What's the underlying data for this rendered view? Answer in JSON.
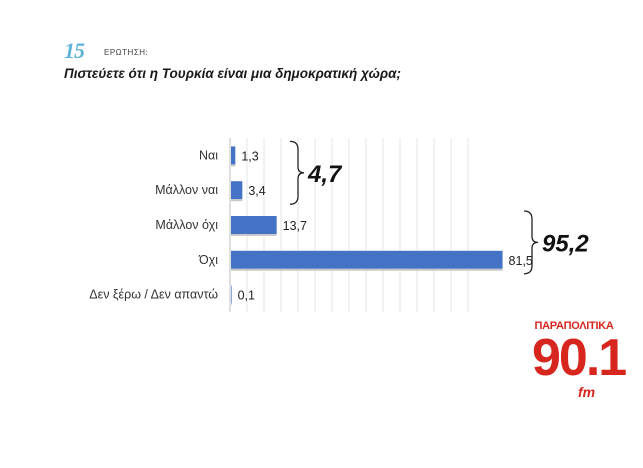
{
  "header": {
    "question_number": "15",
    "question_label": "ΕΡΩΤΗΣΗ:",
    "question_text": "Πιστεύετε ότι η Τουρκία είναι μια δημοκρατική χώρα;"
  },
  "chart_data": {
    "type": "bar",
    "orientation": "horizontal",
    "categories": [
      "Ναι",
      "Μάλλον ναι",
      "Μάλλον όχι",
      "Όχι",
      "Δεν ξέρω / Δεν απαντώ"
    ],
    "values": [
      1.3,
      3.4,
      13.7,
      81.5,
      0.1
    ],
    "value_labels": [
      "1,3",
      "3,4",
      "13,7",
      "81,5",
      "0,1"
    ],
    "xlim": [
      0,
      100
    ],
    "grid": true,
    "bar_color": "#4472c4",
    "group_totals": [
      {
        "label": "4,7",
        "categories": [
          "Ναι",
          "Μάλλον ναι"
        ]
      },
      {
        "label": "95,2",
        "categories": [
          "Μάλλον όχι",
          "Όχι"
        ]
      }
    ]
  },
  "logo": {
    "top_text": "ΠΑΡΑΠΟΛΙΤΙΚΑ",
    "number": "90.1",
    "suffix": "fm",
    "color": "#d7261e"
  }
}
